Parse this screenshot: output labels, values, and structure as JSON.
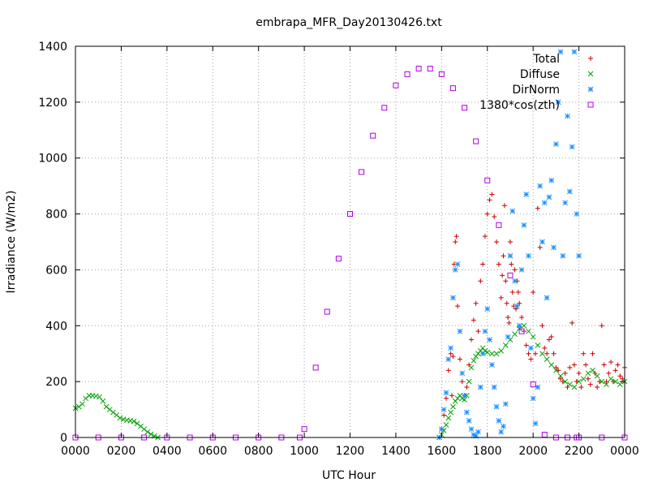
{
  "chart_data": {
    "type": "scatter",
    "title": "embrapa_MFR_Day20130426.txt",
    "xlabel": "UTC Hour",
    "ylabel": "Irradiance (W/m2)",
    "xlim": [
      0,
      24
    ],
    "ylim": [
      0,
      1400
    ],
    "grid": true,
    "legend_position": "top-right",
    "x_ticks": [
      {
        "value": 0,
        "label": "0000"
      },
      {
        "value": 2,
        "label": "0200"
      },
      {
        "value": 4,
        "label": "0400"
      },
      {
        "value": 6,
        "label": "0600"
      },
      {
        "value": 8,
        "label": "0800"
      },
      {
        "value": 10,
        "label": "1000"
      },
      {
        "value": 12,
        "label": "1200"
      },
      {
        "value": 14,
        "label": "1400"
      },
      {
        "value": 16,
        "label": "1600"
      },
      {
        "value": 18,
        "label": "1800"
      },
      {
        "value": 20,
        "label": "2000"
      },
      {
        "value": 22,
        "label": "2200"
      },
      {
        "value": 24,
        "label": "0000"
      }
    ],
    "y_ticks": [
      0,
      200,
      400,
      600,
      800,
      1000,
      1200,
      1400
    ],
    "series": [
      {
        "name": "Total",
        "marker": "plus",
        "color": "#cc0000",
        "x": [
          15.9,
          16.0,
          16.1,
          16.2,
          16.3,
          16.4,
          16.45,
          16.5,
          16.55,
          16.6,
          16.65,
          16.7,
          16.8,
          16.9,
          17.0,
          17.1,
          17.2,
          17.3,
          17.4,
          17.5,
          17.6,
          17.7,
          17.8,
          17.9,
          18.0,
          18.1,
          18.2,
          18.3,
          18.4,
          18.5,
          18.6,
          18.65,
          18.7,
          18.75,
          18.8,
          18.85,
          18.9,
          18.95,
          19.0,
          19.05,
          19.1,
          19.15,
          19.2,
          19.25,
          19.3,
          19.35,
          19.4,
          19.5,
          19.6,
          19.7,
          19.8,
          19.9,
          20.0,
          20.1,
          20.2,
          20.3,
          20.4,
          20.5,
          20.6,
          20.7,
          20.8,
          20.9,
          21.0,
          21.1,
          21.2,
          21.3,
          21.4,
          21.5,
          21.6,
          21.7,
          21.8,
          21.9,
          22.0,
          22.1,
          22.2,
          22.3,
          22.4,
          22.5,
          22.6,
          22.7,
          22.8,
          22.9,
          23.0,
          23.1,
          23.2,
          23.3,
          23.4,
          23.5,
          23.6,
          23.7,
          23.8,
          23.9,
          24.0
        ],
        "y": [
          0,
          30,
          80,
          140,
          240,
          300,
          150,
          290,
          620,
          700,
          720,
          470,
          280,
          200,
          150,
          180,
          260,
          350,
          420,
          480,
          380,
          560,
          620,
          720,
          800,
          850,
          870,
          790,
          700,
          620,
          500,
          580,
          650,
          830,
          560,
          480,
          430,
          410,
          700,
          620,
          520,
          470,
          600,
          460,
          560,
          520,
          480,
          430,
          380,
          330,
          300,
          280,
          520,
          300,
          820,
          680,
          400,
          320,
          300,
          350,
          360,
          300,
          250,
          240,
          210,
          200,
          230,
          180,
          250,
          410,
          260,
          200,
          230,
          180,
          300,
          260,
          210,
          190,
          300,
          230,
          180,
          200,
          400,
          260,
          200,
          230,
          270,
          200,
          240,
          260,
          220,
          210,
          250
        ]
      },
      {
        "name": "Diffuse",
        "marker": "cross",
        "color": "#00a000",
        "x": [
          0.0,
          0.15,
          0.3,
          0.45,
          0.6,
          0.75,
          0.9,
          1.05,
          1.2,
          1.35,
          1.5,
          1.65,
          1.8,
          1.95,
          2.1,
          2.25,
          2.4,
          2.55,
          2.7,
          2.85,
          3.0,
          3.15,
          3.3,
          3.45,
          3.6,
          15.9,
          16.0,
          16.1,
          16.2,
          16.3,
          16.4,
          16.5,
          16.6,
          16.7,
          16.8,
          16.9,
          17.0,
          17.1,
          17.2,
          17.3,
          17.4,
          17.5,
          17.6,
          17.7,
          17.8,
          17.9,
          18.0,
          18.2,
          18.4,
          18.6,
          18.8,
          19.0,
          19.2,
          19.4,
          19.6,
          19.8,
          20.0,
          20.2,
          20.4,
          20.6,
          20.8,
          21.0,
          21.2,
          21.4,
          21.6,
          21.8,
          22.0,
          22.2,
          22.4,
          22.6,
          22.8,
          23.0,
          23.2,
          23.4,
          23.6,
          23.8,
          24.0
        ],
        "y": [
          105,
          110,
          120,
          140,
          150,
          150,
          148,
          145,
          130,
          110,
          100,
          90,
          80,
          70,
          65,
          62,
          60,
          58,
          50,
          40,
          30,
          20,
          12,
          5,
          0,
          0,
          10,
          25,
          45,
          70,
          90,
          110,
          130,
          140,
          150,
          140,
          135,
          150,
          200,
          250,
          275,
          290,
          300,
          310,
          320,
          310,
          305,
          300,
          300,
          310,
          330,
          350,
          370,
          390,
          400,
          380,
          360,
          330,
          300,
          280,
          260,
          240,
          220,
          200,
          190,
          180,
          200,
          210,
          230,
          240,
          220,
          200,
          190,
          210,
          200,
          190,
          200
        ]
      },
      {
        "name": "DirNorm",
        "marker": "star",
        "color": "#1e90ff",
        "x": [
          15.9,
          16.0,
          16.1,
          16.2,
          16.3,
          16.4,
          16.5,
          16.6,
          16.7,
          16.8,
          16.9,
          17.0,
          17.1,
          17.2,
          17.3,
          17.4,
          17.5,
          17.6,
          17.7,
          17.8,
          17.9,
          18.0,
          18.1,
          18.2,
          18.3,
          18.4,
          18.5,
          18.6,
          18.7,
          18.8,
          18.9,
          19.0,
          19.1,
          19.2,
          19.3,
          19.4,
          19.5,
          19.6,
          19.7,
          19.8,
          19.9,
          20.0,
          20.1,
          20.2,
          20.3,
          20.4,
          20.5,
          20.6,
          20.7,
          20.8,
          20.9,
          21.0,
          21.1,
          21.2,
          21.3,
          21.4,
          21.5,
          21.6,
          21.7,
          21.8,
          21.9,
          22.0
        ],
        "y": [
          0,
          30,
          100,
          160,
          280,
          320,
          500,
          600,
          620,
          380,
          230,
          150,
          90,
          60,
          30,
          10,
          5,
          20,
          180,
          300,
          380,
          460,
          350,
          260,
          180,
          110,
          60,
          20,
          40,
          120,
          360,
          650,
          810,
          560,
          470,
          400,
          600,
          760,
          870,
          650,
          320,
          140,
          50,
          180,
          900,
          700,
          840,
          500,
          860,
          920,
          680,
          1050,
          1200,
          1380,
          650,
          840,
          1150,
          880,
          1040,
          1380,
          800,
          650
        ]
      },
      {
        "name": "1380*cos(zth)",
        "marker": "square",
        "color": "#b000e0",
        "x": [
          0,
          1,
          2,
          3,
          4,
          5,
          6,
          7,
          8,
          9,
          9.8,
          10.0,
          10.5,
          11.0,
          11.5,
          12.0,
          12.5,
          13.0,
          13.5,
          14.0,
          14.5,
          15.0,
          15.5,
          16.0,
          16.5,
          17.0,
          17.5,
          18.0,
          18.5,
          19.0,
          19.5,
          20.0,
          20.5,
          21.0,
          21.5,
          21.9,
          22.0,
          23.0,
          24.0
        ],
        "y": [
          0,
          0,
          0,
          0,
          0,
          0,
          0,
          0,
          0,
          0,
          0,
          30,
          250,
          450,
          640,
          800,
          950,
          1080,
          1180,
          1260,
          1300,
          1320,
          1320,
          1300,
          1250,
          1180,
          1060,
          920,
          760,
          580,
          380,
          190,
          10,
          0,
          0,
          0,
          0,
          0,
          0
        ]
      }
    ]
  }
}
